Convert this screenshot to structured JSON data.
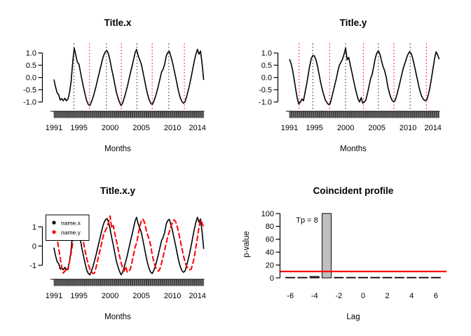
{
  "figure": {
    "background": "#ffffff",
    "accent_red": "#ff0000",
    "bar_gray": "#bfbfbf"
  },
  "chart_data": [
    {
      "panel": "top-left",
      "type": "line",
      "title": "Title.x",
      "xlabel": "Months",
      "x_tick_labels": [
        1991,
        1995,
        2000,
        2005,
        2010,
        2014
      ],
      "y_tick_labels": [
        "1.0",
        "0.5",
        "0.0",
        "-0.5",
        "-1.0"
      ],
      "y_tick_values": [
        1.0,
        0.5,
        0.0,
        -0.5,
        -1.0
      ],
      "xlim": [
        1991,
        2015
      ],
      "ylim": [
        -1.3,
        1.3
      ],
      "x_start": 1991,
      "x_step": 0.25,
      "line_color": "#000000",
      "peak_lines": {
        "color": "#333333",
        "x": [
          1994.2,
          1999.4,
          2004.3,
          2009.4
        ]
      },
      "trough_lines": {
        "color": "#ff0000",
        "x": [
          1996.7,
          2001.8,
          2006.75,
          2011.9
        ]
      },
      "rug": {
        "start": 1991,
        "end": 2015,
        "per_year": 12
      },
      "values": [
        -0.08,
        -0.38,
        -0.62,
        -0.7,
        -0.92,
        -0.86,
        -0.95,
        -0.85,
        -0.95,
        -0.88,
        -0.6,
        -0.15,
        0.6,
        1.2,
        0.9,
        0.62,
        0.55,
        0.22,
        -0.12,
        -0.42,
        -0.7,
        -0.95,
        -1.1,
        -1.15,
        -1.0,
        -0.82,
        -0.6,
        -0.35,
        -0.08,
        0.18,
        0.45,
        0.72,
        0.92,
        1.05,
        1.1,
        0.95,
        0.68,
        0.35,
        0.05,
        -0.28,
        -0.6,
        -0.82,
        -1.0,
        -1.15,
        -1.05,
        -0.85,
        -0.62,
        -0.38,
        -0.1,
        0.18,
        0.45,
        0.72,
        1.0,
        1.15,
        0.88,
        0.72,
        0.55,
        0.25,
        -0.08,
        -0.4,
        -0.68,
        -0.9,
        -1.05,
        -1.1,
        -0.98,
        -0.8,
        -0.58,
        -0.32,
        -0.05,
        0.22,
        0.35,
        0.55,
        0.88,
        1.02,
        1.07,
        0.85,
        0.62,
        0.32,
        0.02,
        -0.3,
        -0.6,
        -0.82,
        -0.98,
        -1.05,
        -1.0,
        -0.8,
        -0.55,
        -0.28,
        0.02,
        0.35,
        0.68,
        0.95,
        1.15,
        0.95,
        1.08,
        0.55,
        -0.1
      ]
    },
    {
      "panel": "top-right",
      "type": "line",
      "title": "Title.y",
      "xlabel": "Months",
      "x_tick_labels": [
        1991,
        1995,
        2000,
        2005,
        2010,
        2014
      ],
      "y_tick_labels": [
        "1.0",
        "0.5",
        "0.0",
        "-0.5",
        "-1.0"
      ],
      "y_tick_values": [
        1.0,
        0.5,
        0.0,
        -0.5,
        -1.0
      ],
      "xlim": [
        1991,
        2015
      ],
      "ylim": [
        -1.3,
        1.3
      ],
      "x_start": 1991,
      "x_step": 0.25,
      "line_color": "#000000",
      "peak_lines": {
        "color": "#333333",
        "x": [
          1994.75,
          2000.0,
          2005.25,
          2010.35
        ]
      },
      "trough_lines": {
        "color": "#ff0000",
        "x": [
          1992.55,
          1997.45,
          2002.85,
          2007.75,
          2012.95
        ]
      },
      "rug": {
        "start": 1991,
        "end": 2015,
        "per_year": 12
      },
      "values": [
        0.75,
        0.58,
        0.3,
        -0.08,
        -0.48,
        -0.85,
        -1.08,
        -1.0,
        -0.88,
        -0.95,
        -0.6,
        -0.28,
        0.1,
        0.48,
        0.78,
        0.9,
        0.88,
        0.72,
        0.45,
        0.12,
        -0.2,
        -0.48,
        -0.72,
        -0.92,
        -1.02,
        -1.1,
        -1.08,
        -0.85,
        -0.58,
        -0.32,
        -0.05,
        0.25,
        0.5,
        0.62,
        0.75,
        0.95,
        1.2,
        0.72,
        0.82,
        0.5,
        0.22,
        -0.08,
        -0.38,
        -0.65,
        -0.88,
        -1.0,
        -0.82,
        -1.05,
        -1.0,
        -0.92,
        -0.65,
        -0.35,
        -0.05,
        0.12,
        0.45,
        0.78,
        1.0,
        1.08,
        0.95,
        0.68,
        0.45,
        0.28,
        0.02,
        -0.35,
        -0.62,
        -0.82,
        -0.95,
        -1.0,
        -0.9,
        -0.68,
        -0.42,
        -0.15,
        0.12,
        0.38,
        0.58,
        0.78,
        0.95,
        1.05,
        0.98,
        0.78,
        0.52,
        0.22,
        -0.08,
        -0.38,
        -0.62,
        -0.8,
        -0.9,
        -0.95,
        -0.92,
        -0.72,
        -0.42,
        -0.05,
        0.35,
        0.75,
        1.05,
        0.92,
        0.75
      ]
    },
    {
      "panel": "bottom-left",
      "type": "line-multi",
      "title": "Title.x.y",
      "xlabel": "Months",
      "x_tick_labels": [
        1991,
        1995,
        2000,
        2005,
        2010,
        2014
      ],
      "y_tick_labels": [
        "1",
        "0",
        "-1"
      ],
      "y_tick_values": [
        1,
        0,
        -1
      ],
      "xlim": [
        1991,
        2015
      ],
      "x_start": 1991,
      "x_step": 0.25,
      "series": [
        {
          "name": "name.x",
          "color": "#000000",
          "dash": null,
          "width": 1.6,
          "source": 0,
          "scale": 1.3
        },
        {
          "name": "name.y",
          "color": "#ff0000",
          "dash": [
            6.5,
            4.5
          ],
          "width": 2.0,
          "source": 1,
          "scale": 1.3
        }
      ],
      "legend": {
        "entries": [
          "name.x",
          "name.y"
        ],
        "colors": [
          "#000000",
          "#ff0000"
        ]
      },
      "rug": {
        "start": 1991,
        "end": 2015,
        "per_year": 12
      }
    },
    {
      "panel": "bottom-right",
      "type": "bar",
      "title": "Coincident profile",
      "xlabel": "Lag",
      "ylabel": "p-value",
      "categories": [
        -6,
        -5,
        -4,
        -3,
        -2,
        -1,
        0,
        1,
        2,
        3,
        4,
        5,
        6
      ],
      "values": [
        0.8,
        0.8,
        2.2,
        100,
        0.8,
        0.8,
        0.8,
        0.8,
        0.8,
        0.8,
        0.8,
        0.8,
        0.8
      ],
      "x_tick_labels": [
        -6,
        -4,
        -2,
        0,
        2,
        4,
        6
      ],
      "y_tick_labels": [
        0,
        20,
        40,
        60,
        80,
        100
      ],
      "ylim": [
        0,
        100
      ],
      "bar_color": "#3a3a3a",
      "highlight": {
        "category": -3,
        "fill": "#bfbfbf"
      },
      "threshold_line": {
        "y": 10,
        "color": "#ff0000"
      },
      "annotation": {
        "text": "Tp = 8",
        "x": -4.6,
        "y": 88
      }
    }
  ]
}
